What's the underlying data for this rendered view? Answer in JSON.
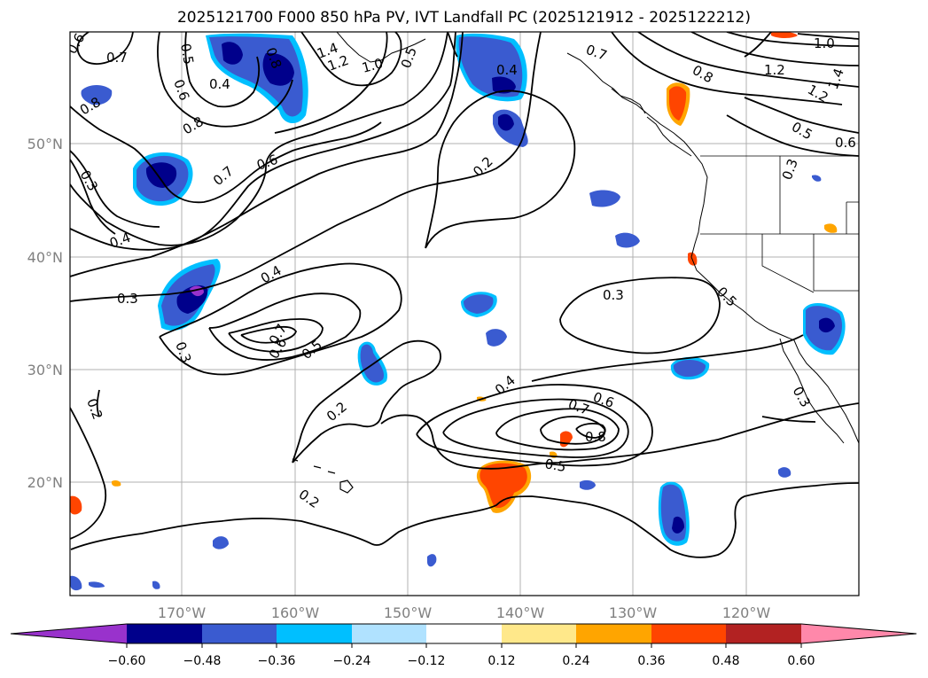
{
  "title": "2025121700 F000 850 hPa PV, IVT Landfall PC (2025121912 - 2025122212)",
  "map": {
    "lon_ticks": [
      "170°W",
      "160°W",
      "150°W",
      "140°W",
      "130°W",
      "120°W"
    ],
    "lat_ticks": [
      "50°N",
      "40°N",
      "30°N",
      "20°N"
    ],
    "contour_labels": [
      "0.6",
      "0.7",
      "0.5",
      "0.6",
      "0.4",
      "0.8",
      "1.2",
      "1.4",
      "1.0",
      "0.5",
      "0.4",
      "0.7",
      "0.8",
      "1.2",
      "1.0",
      "1.2",
      "1.4",
      "0.5",
      "0.6",
      "0.8",
      "0.3",
      "0.8",
      "0.7",
      "0.6",
      "0.2",
      "0.4",
      "0.3",
      "0.3",
      "0.4",
      "0.6",
      "0.5",
      "0.7",
      "0.2",
      "0.3",
      "0.5",
      "0.3",
      "0.4",
      "0.7",
      "0.6",
      "0.8",
      "0.5",
      "0.2",
      "0.2",
      "0.3"
    ]
  },
  "colorbar": {
    "colors": [
      "#9932cc",
      "#00008b",
      "#3a5bd0",
      "#00bfff",
      "#b0e2ff",
      "#ffffff",
      "#ffe88a",
      "#ffa500",
      "#ff4500",
      "#b22222",
      "#ff88aa"
    ],
    "tick_labels": [
      "−0.60",
      "−0.48",
      "−0.36",
      "−0.24",
      "−0.12",
      "0.12",
      "0.24",
      "0.36",
      "0.48",
      "0.60"
    ]
  }
}
